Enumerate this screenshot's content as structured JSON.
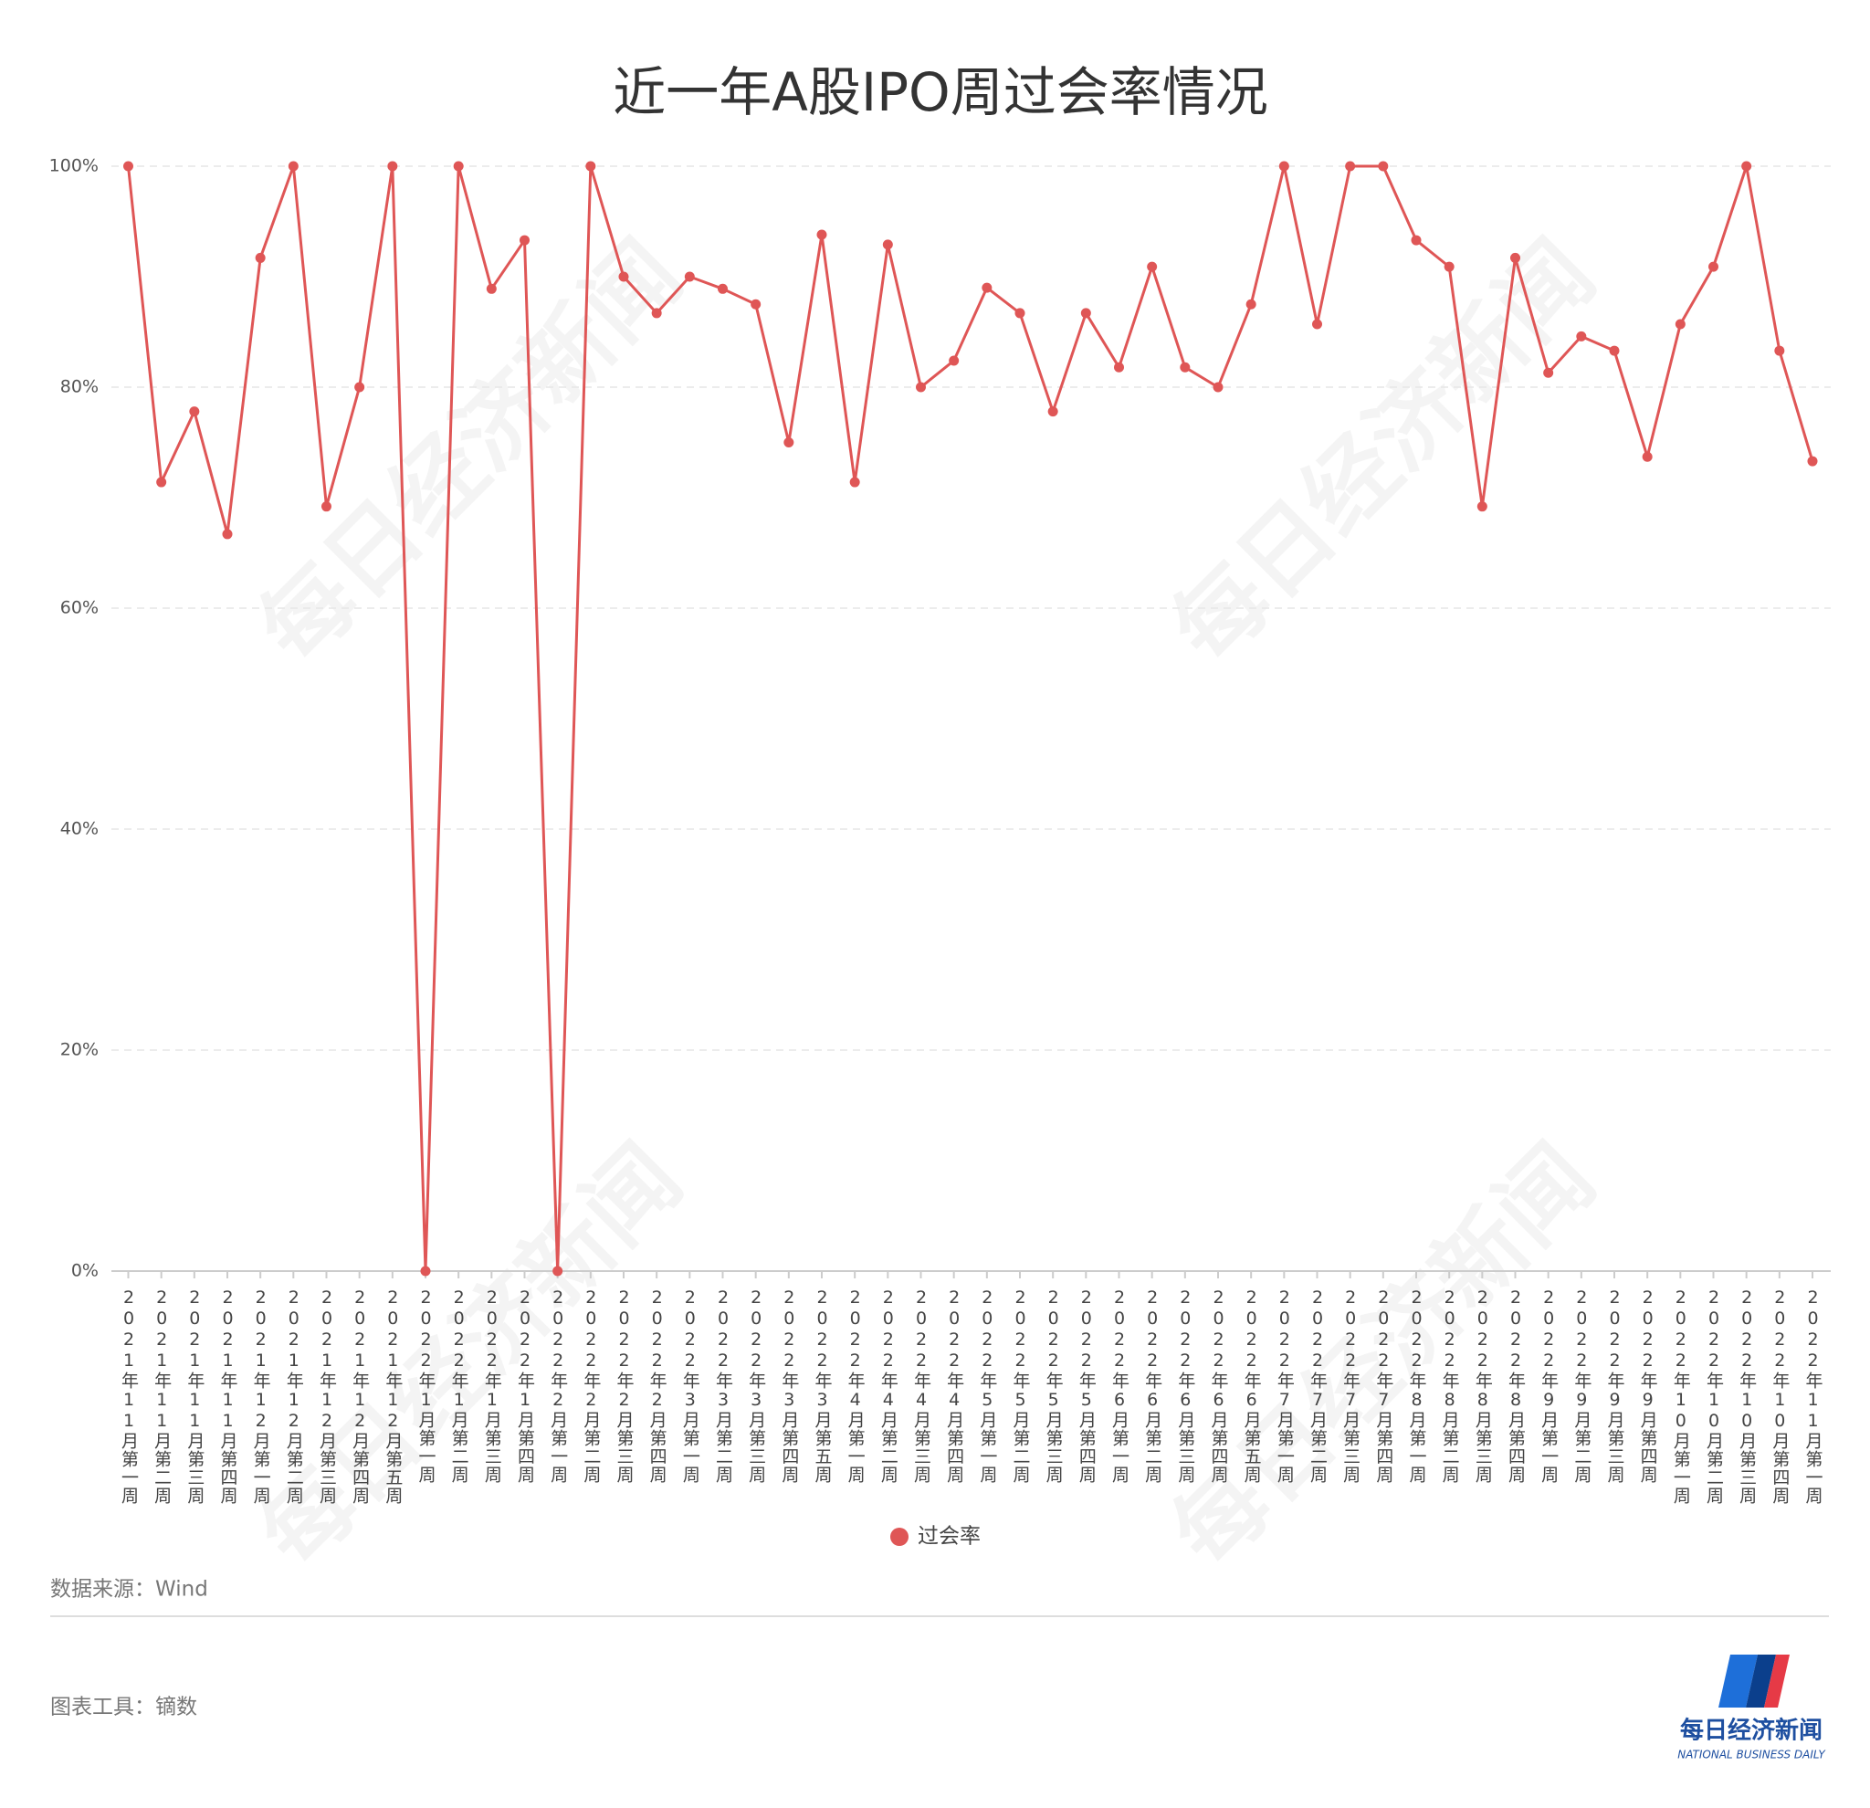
{
  "chart_data": {
    "type": "line",
    "title": "近一年A股IPO周过会率情况",
    "categories": [
      "2021年11月第一周",
      "2021年11月第二周",
      "2021年11月第三周",
      "2021年11月第四周",
      "2021年12月第一周",
      "2021年12月第二周",
      "2021年12月第三周",
      "2021年12月第四周",
      "2021年12月第五周",
      "2022年1月第一周",
      "2022年1月第二周",
      "2022年1月第三周",
      "2022年1月第四周",
      "2022年2月第一周",
      "2022年2月第二周",
      "2022年2月第三周",
      "2022年2月第四周",
      "2022年3月第一周",
      "2022年3月第二周",
      "2022年3月第三周",
      "2022年3月第四周",
      "2022年3月第五周",
      "2022年4月第一周",
      "2022年4月第二周",
      "2022年4月第三周",
      "2022年4月第四周",
      "2022年5月第一周",
      "2022年5月第二周",
      "2022年5月第三周",
      "2022年5月第四周",
      "2022年6月第一周",
      "2022年6月第二周",
      "2022年6月第三周",
      "2022年6月第四周",
      "2022年6月第五周",
      "2022年7月第一周",
      "2022年7月第二周",
      "2022年7月第三周",
      "2022年7月第四周",
      "2022年8月第一周",
      "2022年8月第二周",
      "2022年8月第三周",
      "2022年8月第四周",
      "2022年9月第一周",
      "2022年9月第二周",
      "2022年9月第三周",
      "2022年9月第四周",
      "2022年10月第一周",
      "2022年10月第二周",
      "2022年10月第三周",
      "2022年10月第四周",
      "2022年11月第一周"
    ],
    "series": [
      {
        "name": "过会率",
        "color": "#df5656",
        "values": [
          100,
          71.4,
          77.8,
          66.7,
          91.7,
          100,
          69.2,
          80,
          100,
          0,
          100,
          88.9,
          93.3,
          0,
          100,
          90,
          86.7,
          90,
          88.9,
          87.5,
          75,
          93.8,
          71.4,
          92.9,
          80,
          82.4,
          89,
          86.7,
          77.8,
          86.7,
          81.8,
          90.9,
          81.8,
          80,
          87.5,
          100,
          85.7,
          100,
          100,
          93.3,
          90.9,
          69.2,
          91.7,
          81.3,
          84.6,
          83.3,
          73.7,
          85.7,
          90.9,
          100,
          83.3,
          73.3
        ]
      }
    ],
    "ylim": [
      0,
      100
    ],
    "yticks": [
      {
        "value": 0,
        "label": "0%"
      },
      {
        "value": 20,
        "label": "20%"
      },
      {
        "value": 40,
        "label": "40%"
      },
      {
        "value": 60,
        "label": "60%"
      },
      {
        "value": 80,
        "label": "80%"
      },
      {
        "value": 100,
        "label": "100%"
      }
    ],
    "grid": true,
    "legend": "bottom"
  },
  "footer": {
    "source": "数据来源：Wind",
    "tool": "图表工具：镝数"
  },
  "logo": {
    "name": "每日经济新闻",
    "subtitle": "NATIONAL BUSINESS DAILY"
  },
  "watermark": "每日经济新闻"
}
